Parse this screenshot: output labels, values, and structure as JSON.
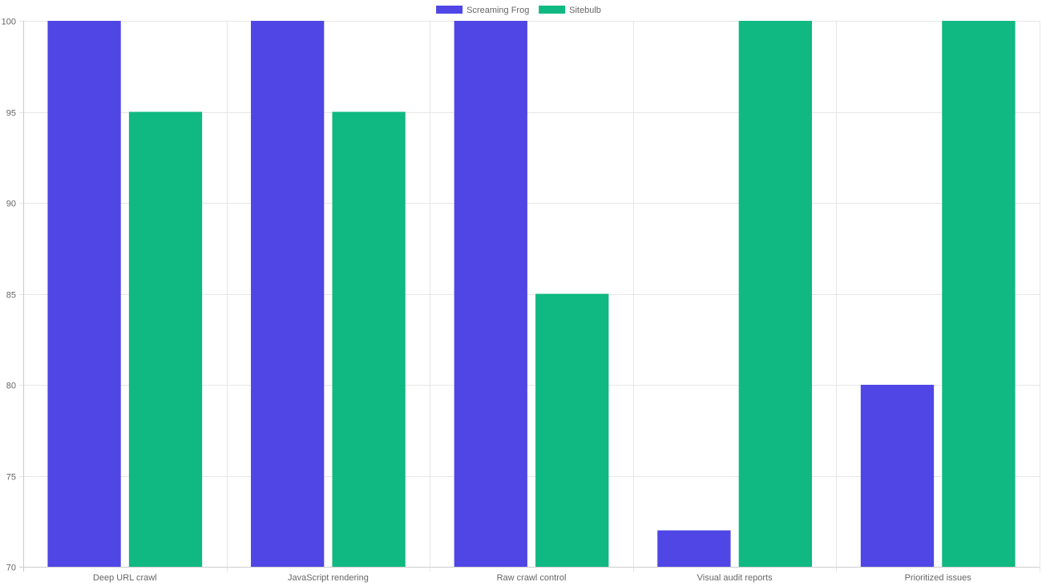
{
  "chart_data": {
    "type": "bar",
    "categories": [
      "Deep URL crawl",
      "JavaScript rendering",
      "Raw crawl control",
      "Visual audit reports",
      "Prioritized issues"
    ],
    "series": [
      {
        "name": "Screaming Frog",
        "values": [
          100,
          100,
          100,
          72,
          80
        ],
        "color": "#4f46e5"
      },
      {
        "name": "Sitebulb",
        "values": [
          95,
          95,
          85,
          100,
          100
        ],
        "color": "#10b981"
      }
    ],
    "ylim": [
      70,
      100
    ],
    "yticks": [
      70,
      75,
      80,
      85,
      90,
      95,
      100
    ],
    "grid": true,
    "legend": "top-center",
    "title": "",
    "xlabel": "",
    "ylabel": ""
  }
}
